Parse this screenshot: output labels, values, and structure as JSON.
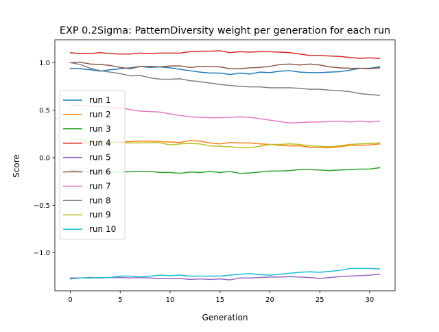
{
  "chart_data": {
    "type": "line",
    "title": "EXP 0.2Sigma: PatternDiversity weight per generation for each run",
    "xlabel": "Generation",
    "ylabel": "Score",
    "xlim": [
      -1.55,
      32.55
    ],
    "ylim": [
      -1.4,
      1.24
    ],
    "x_ticks": [
      0,
      5,
      10,
      15,
      20,
      25,
      30
    ],
    "y_ticks": [
      -1.0,
      -0.5,
      0.0,
      0.5,
      1.0
    ],
    "y_tick_labels": [
      "−1.0",
      "−0.5",
      "0.0",
      "0.5",
      "1.0"
    ],
    "grid": false,
    "legend_position": "center-left",
    "x": [
      0,
      1,
      2,
      3,
      4,
      5,
      6,
      7,
      8,
      9,
      10,
      11,
      12,
      13,
      14,
      15,
      16,
      17,
      18,
      19,
      20,
      21,
      22,
      23,
      24,
      25,
      26,
      27,
      28,
      29,
      30,
      31
    ],
    "series": [
      {
        "name": "run 1",
        "color": "#1f77b4",
        "values": [
          0.94,
          0.935,
          0.925,
          0.91,
          0.925,
          0.935,
          0.945,
          0.96,
          0.95,
          0.955,
          0.945,
          0.93,
          0.915,
          0.9,
          0.89,
          0.89,
          0.875,
          0.89,
          0.88,
          0.9,
          0.895,
          0.91,
          0.915,
          0.9,
          0.895,
          0.895,
          0.9,
          0.905,
          0.92,
          0.94,
          0.94,
          0.955
        ]
      },
      {
        "name": "run 2",
        "color": "#ff7f0e",
        "values": [
          0.16,
          0.155,
          0.16,
          0.165,
          0.165,
          0.165,
          0.17,
          0.175,
          0.175,
          0.17,
          0.165,
          0.16,
          0.18,
          0.175,
          0.155,
          0.145,
          0.16,
          0.155,
          0.155,
          0.145,
          0.14,
          0.13,
          0.125,
          0.125,
          0.11,
          0.105,
          0.105,
          0.115,
          0.13,
          0.13,
          0.135,
          0.145
        ]
      },
      {
        "name": "run 3",
        "color": "#2ca02c",
        "values": [
          -0.13,
          -0.145,
          -0.15,
          -0.15,
          -0.15,
          -0.15,
          -0.148,
          -0.145,
          -0.145,
          -0.155,
          -0.155,
          -0.165,
          -0.15,
          -0.155,
          -0.145,
          -0.155,
          -0.145,
          -0.165,
          -0.16,
          -0.15,
          -0.14,
          -0.14,
          -0.135,
          -0.125,
          -0.125,
          -0.13,
          -0.135,
          -0.13,
          -0.125,
          -0.12,
          -0.12,
          -0.105
        ]
      },
      {
        "name": "run 4",
        "color": "#d62728",
        "values": [
          1.105,
          1.095,
          1.095,
          1.105,
          1.095,
          1.09,
          1.09,
          1.1,
          1.095,
          1.1,
          1.1,
          1.1,
          1.115,
          1.12,
          1.12,
          1.125,
          1.105,
          1.115,
          1.11,
          1.115,
          1.115,
          1.11,
          1.105,
          1.09,
          1.075,
          1.075,
          1.07,
          1.065,
          1.055,
          1.045,
          1.05,
          1.045
        ]
      },
      {
        "name": "run 5",
        "color": "#9467bd",
        "values": [
          -1.265,
          -1.265,
          -1.26,
          -1.265,
          -1.26,
          -1.26,
          -1.265,
          -1.26,
          -1.265,
          -1.27,
          -1.27,
          -1.27,
          -1.28,
          -1.275,
          -1.28,
          -1.275,
          -1.285,
          -1.265,
          -1.265,
          -1.26,
          -1.255,
          -1.255,
          -1.25,
          -1.255,
          -1.26,
          -1.27,
          -1.26,
          -1.25,
          -1.245,
          -1.24,
          -1.235,
          -1.225
        ]
      },
      {
        "name": "run 6",
        "color": "#8c564b",
        "values": [
          1.0,
          1.005,
          0.985,
          0.98,
          0.97,
          0.95,
          0.935,
          0.96,
          0.96,
          0.955,
          0.965,
          0.965,
          0.95,
          0.96,
          0.96,
          0.955,
          0.935,
          0.935,
          0.945,
          0.95,
          0.96,
          0.98,
          0.985,
          0.975,
          0.985,
          0.975,
          0.955,
          0.945,
          0.94,
          0.94,
          0.935,
          0.945
        ]
      },
      {
        "name": "run 7",
        "color": "#e377c2",
        "values": [
          0.55,
          0.55,
          0.545,
          0.54,
          0.53,
          0.525,
          0.505,
          0.49,
          0.485,
          0.48,
          0.46,
          0.445,
          0.43,
          0.425,
          0.42,
          0.42,
          0.425,
          0.43,
          0.425,
          0.41,
          0.395,
          0.38,
          0.365,
          0.37,
          0.375,
          0.375,
          0.38,
          0.385,
          0.375,
          0.385,
          0.375,
          0.385
        ]
      },
      {
        "name": "run 8",
        "color": "#7f7f7f",
        "values": [
          1.0,
          0.98,
          0.94,
          0.915,
          0.9,
          0.885,
          0.86,
          0.865,
          0.84,
          0.825,
          0.825,
          0.83,
          0.81,
          0.8,
          0.785,
          0.77,
          0.76,
          0.75,
          0.745,
          0.745,
          0.735,
          0.735,
          0.735,
          0.73,
          0.72,
          0.72,
          0.71,
          0.705,
          0.695,
          0.675,
          0.665,
          0.655
        ]
      },
      {
        "name": "run 9",
        "color": "#bcbd22",
        "values": [
          0.2,
          0.195,
          0.18,
          0.17,
          0.16,
          0.155,
          0.155,
          0.155,
          0.16,
          0.155,
          0.135,
          0.145,
          0.15,
          0.145,
          0.125,
          0.12,
          0.115,
          0.105,
          0.105,
          0.12,
          0.14,
          0.14,
          0.145,
          0.14,
          0.125,
          0.12,
          0.115,
          0.125,
          0.14,
          0.145,
          0.15,
          0.155
        ]
      },
      {
        "name": "run 10",
        "color": "#17becf",
        "values": [
          -1.275,
          -1.265,
          -1.265,
          -1.26,
          -1.26,
          -1.245,
          -1.245,
          -1.255,
          -1.245,
          -1.235,
          -1.24,
          -1.235,
          -1.245,
          -1.245,
          -1.245,
          -1.245,
          -1.235,
          -1.225,
          -1.22,
          -1.23,
          -1.235,
          -1.225,
          -1.215,
          -1.205,
          -1.2,
          -1.205,
          -1.195,
          -1.185,
          -1.165,
          -1.165,
          -1.165,
          -1.17
        ]
      }
    ]
  }
}
